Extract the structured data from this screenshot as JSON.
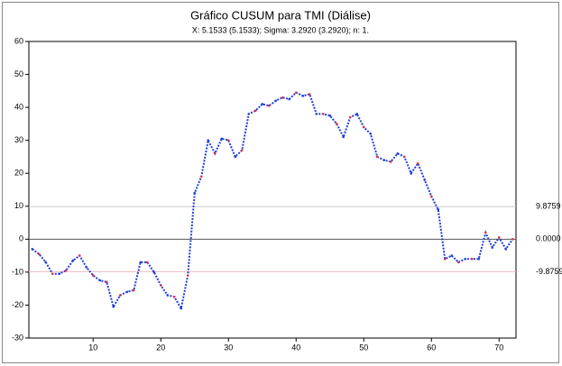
{
  "chart_data": {
    "type": "line",
    "title": "Gráfico CUSUM para TMI (Diálise)",
    "subtitle": "X: 5.1533 (5.1533); Sigma: 3.2920 (3.2920); n: 1.",
    "x": [
      1,
      2,
      3,
      4,
      5,
      6,
      7,
      8,
      9,
      10,
      11,
      12,
      13,
      14,
      15,
      16,
      17,
      18,
      19,
      20,
      21,
      22,
      23,
      24,
      25,
      26,
      27,
      28,
      29,
      30,
      31,
      32,
      33,
      34,
      35,
      36,
      37,
      38,
      39,
      40,
      41,
      42,
      43,
      44,
      45,
      46,
      47,
      48,
      49,
      50,
      51,
      52,
      53,
      54,
      55,
      56,
      57,
      58,
      59,
      60,
      61,
      62,
      63,
      64,
      65,
      66,
      67,
      68,
      69,
      70,
      71,
      72
    ],
    "series": [
      {
        "color": "#1f3fd8",
        "marker_color": "#e0304a",
        "values": [
          -3,
          -4.5,
          -7,
          -10.5,
          -10.5,
          -9.5,
          -6.5,
          -5,
          -8.5,
          -11,
          -12.5,
          -13,
          -20.5,
          -17,
          -16,
          -15.5,
          -7,
          -7,
          -10,
          -14,
          -17,
          -17.5,
          -21,
          -11,
          14,
          19,
          30,
          26,
          30.5,
          30,
          25,
          27,
          38,
          39,
          41,
          40.5,
          42,
          43,
          42.5,
          44.5,
          43.5,
          44,
          38,
          38,
          37.5,
          35,
          31,
          37,
          38,
          34,
          32,
          25,
          24,
          23.5,
          26,
          25,
          20,
          23,
          18,
          13,
          9,
          -6,
          -5,
          -7,
          -6,
          -6,
          -6,
          2,
          -2.5,
          0.5,
          -3,
          0
        ]
      }
    ],
    "reference_lines": [
      {
        "value": 9.8759,
        "label": "9.8759",
        "color": "#cccccc"
      },
      {
        "value": 0,
        "label": "0.0000",
        "color": "#555555"
      },
      {
        "value": -9.8759,
        "label": "-9.8759",
        "color": "#f0b8c0"
      }
    ],
    "xlim": [
      0.5,
      72.5
    ],
    "xticks": [
      10,
      20,
      30,
      40,
      50,
      60,
      70
    ],
    "ylim": [
      -30,
      60
    ],
    "yticks": [
      -30,
      -20,
      -10,
      0,
      10,
      20,
      30,
      40,
      50,
      60
    ]
  }
}
